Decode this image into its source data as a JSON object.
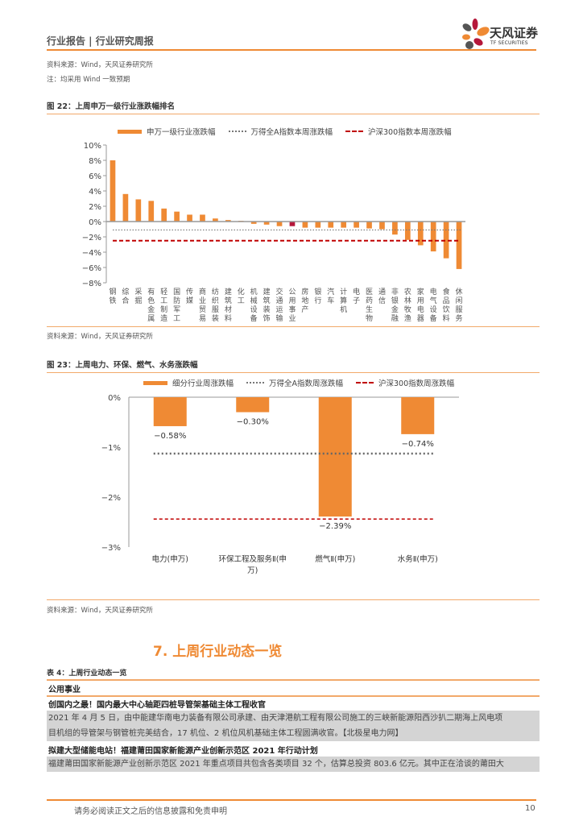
{
  "header": {
    "title": "行业报告 | 行业研究周报",
    "logo_cn": "天风证券",
    "logo_en": "TF SECURITIES"
  },
  "top_notes": {
    "source": "资料来源：Wind，天风证券研究所",
    "note": "注：均采用 Wind 一致预期"
  },
  "figure22": {
    "title": "图 22：上周申万一级行业涨跌幅排名",
    "legend": [
      "申万一级行业涨跌幅",
      "万得全A指数本周涨跌幅",
      "沪深300指数本周涨跌幅"
    ],
    "source": "资料来源：Wind，天风证券研究所"
  },
  "figure23": {
    "title": "图 23：上周电力、环保、燃气、水务涨跌幅",
    "legend": [
      "细分行业周涨跌幅",
      "万得全A指数周涨跌幅",
      "沪深300指数周涨跌幅"
    ],
    "source": "资料来源：Wind，天风证券研究所"
  },
  "chart_data": [
    {
      "type": "bar",
      "title": "上周申万一级行业涨跌幅排名",
      "categories": [
        "钢铁",
        "综合",
        "采掘",
        "有色金属",
        "轻工制造",
        "国防军工",
        "传媒",
        "商业贸易",
        "纺织服装",
        "建筑材料",
        "化工",
        "机械设备",
        "建筑装饰",
        "交通运输",
        "公用事业",
        "房地产",
        "银行",
        "汽车",
        "计算机",
        "电子",
        "医药生物",
        "通信",
        "非银金融",
        "农林牧渔",
        "家用电器",
        "电气设备",
        "食品饮料",
        "休闲服务"
      ],
      "series": [
        {
          "name": "申万一级行业涨跌幅",
          "values": [
            8.0,
            3.6,
            2.9,
            2.7,
            1.7,
            1.3,
            0.9,
            0.9,
            0.4,
            0.2,
            0.1,
            -0.3,
            -0.4,
            -0.6,
            -0.6,
            -0.8,
            -0.8,
            -0.8,
            -0.8,
            -0.8,
            -0.9,
            -1.0,
            -1.7,
            -2.4,
            -3.1,
            -3.9,
            -4.8,
            -6.2
          ]
        },
        {
          "name": "万得全A指数本周涨跌幅",
          "values": [
            -1.1
          ]
        },
        {
          "name": "沪深300指数本周涨跌幅",
          "values": [
            -2.5
          ]
        }
      ],
      "highlight_category": "公用事业",
      "yticks": [
        "10%",
        "8%",
        "6%",
        "4%",
        "2%",
        "0%",
        "-2%",
        "-4%",
        "-6%",
        "-8%"
      ],
      "ylim": [
        -8,
        10
      ],
      "colors": {
        "bar": "#ef8a34",
        "highlight": "#b5173a",
        "dotted": "#777777",
        "dashed": "#c00000"
      },
      "legend_position": "top"
    },
    {
      "type": "bar",
      "title": "上周电力、环保、燃气、水务涨跌幅",
      "categories": [
        "电力(申万)",
        "环保工程及服务Ⅱ(申万)",
        "燃气Ⅱ(申万)",
        "水务Ⅱ(申万)"
      ],
      "series": [
        {
          "name": "细分行业周涨跌幅",
          "values": [
            -0.58,
            -0.3,
            -2.39,
            -0.74
          ]
        },
        {
          "name": "万得全A指数周涨跌幅",
          "values": [
            -1.13
          ]
        },
        {
          "name": "沪深300指数周涨跌幅",
          "values": [
            -2.44
          ]
        }
      ],
      "data_labels": [
        "-0.58%",
        "-0.30%",
        "-2.39%",
        "-0.74%"
      ],
      "yticks": [
        "0%",
        "-1%",
        "-2%",
        "-3%"
      ],
      "ylim": [
        -3,
        0
      ],
      "colors": {
        "bar": "#ef8a34",
        "dotted": "#666666",
        "dashed": "#c00000"
      },
      "legend_position": "top"
    }
  ],
  "section": {
    "title": "7. 上周行业动态一览",
    "table_caption": "表 4：上周行业动态一览",
    "category": "公用事业",
    "news": [
      {
        "headline": "创国内之最！国内最大中心轴距四桩导管架基础主体工程收官",
        "body_lines": [
          "2021 年 4 月 5 日，由中能建华南电力装备有限公司承建、由天津港航工程有限公司施工的三峡新能源阳西沙扒二期海上风电项",
          "目机组的导管架与钢管桩完美结合，17 机位、2 机位风机基础主体工程圆满收官。【北极星电力网】"
        ]
      },
      {
        "headline": "拟建大型储能电站！福建莆田国家新能源产业创新示范区 2021 年行动计划",
        "body_lines": [
          "福建莆田国家新能源产业创新示范区 2021 年重点项目共包含各类项目 32 个，估算总投资 803.6 亿元。其中正在洽谈的莆田大"
        ]
      }
    ]
  },
  "footer": {
    "disclaimer": "请务必阅读正文之后的信息披露和免责申明",
    "page": "10"
  }
}
